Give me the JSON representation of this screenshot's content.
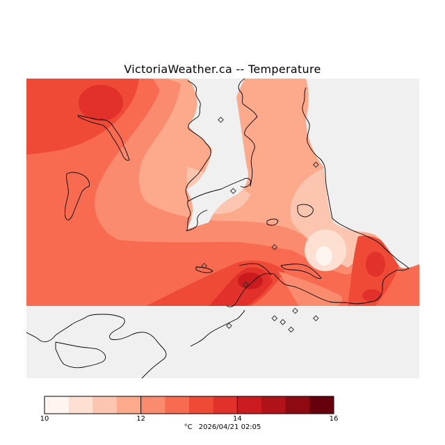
{
  "title": "VictoriaWeather.ca -- Temperature",
  "units": "°C",
  "timestamp": "2026/04/21 02:05",
  "colorbar": {
    "min": 10,
    "max": 16,
    "tick_labels": [
      "10",
      "12",
      "14",
      "16"
    ],
    "colors": [
      "#fff5f0",
      "#fee0d2",
      "#fcc5b0",
      "#fca98c",
      "#fb8b6e",
      "#f86b50",
      "#ef4a35",
      "#e2302a",
      "#cc1b1f",
      "#b01218",
      "#8e0a12",
      "#67000d"
    ]
  },
  "colors": {
    "land_background": "#f86b50",
    "no_data": "#f0f0f0",
    "coast": "#000000",
    "station_marker": "#333333"
  },
  "stations": [
    {
      "lat": 48.99,
      "lon": -123.53
    },
    {
      "lat": 48.8,
      "lon": -123.5
    },
    {
      "lat": 48.87,
      "lon": -123.3
    },
    {
      "lat": 48.65,
      "lon": -123.4
    },
    {
      "lat": 48.6,
      "lon": -123.57
    },
    {
      "lat": 48.55,
      "lon": -123.47
    },
    {
      "lat": 48.44,
      "lon": -123.51
    },
    {
      "lat": 48.46,
      "lon": -123.4
    },
    {
      "lat": 48.48,
      "lon": -123.35
    },
    {
      "lat": 48.45,
      "lon": -123.38
    },
    {
      "lat": 48.46,
      "lon": -123.3
    },
    {
      "lat": 48.43,
      "lon": -123.36
    }
  ]
}
